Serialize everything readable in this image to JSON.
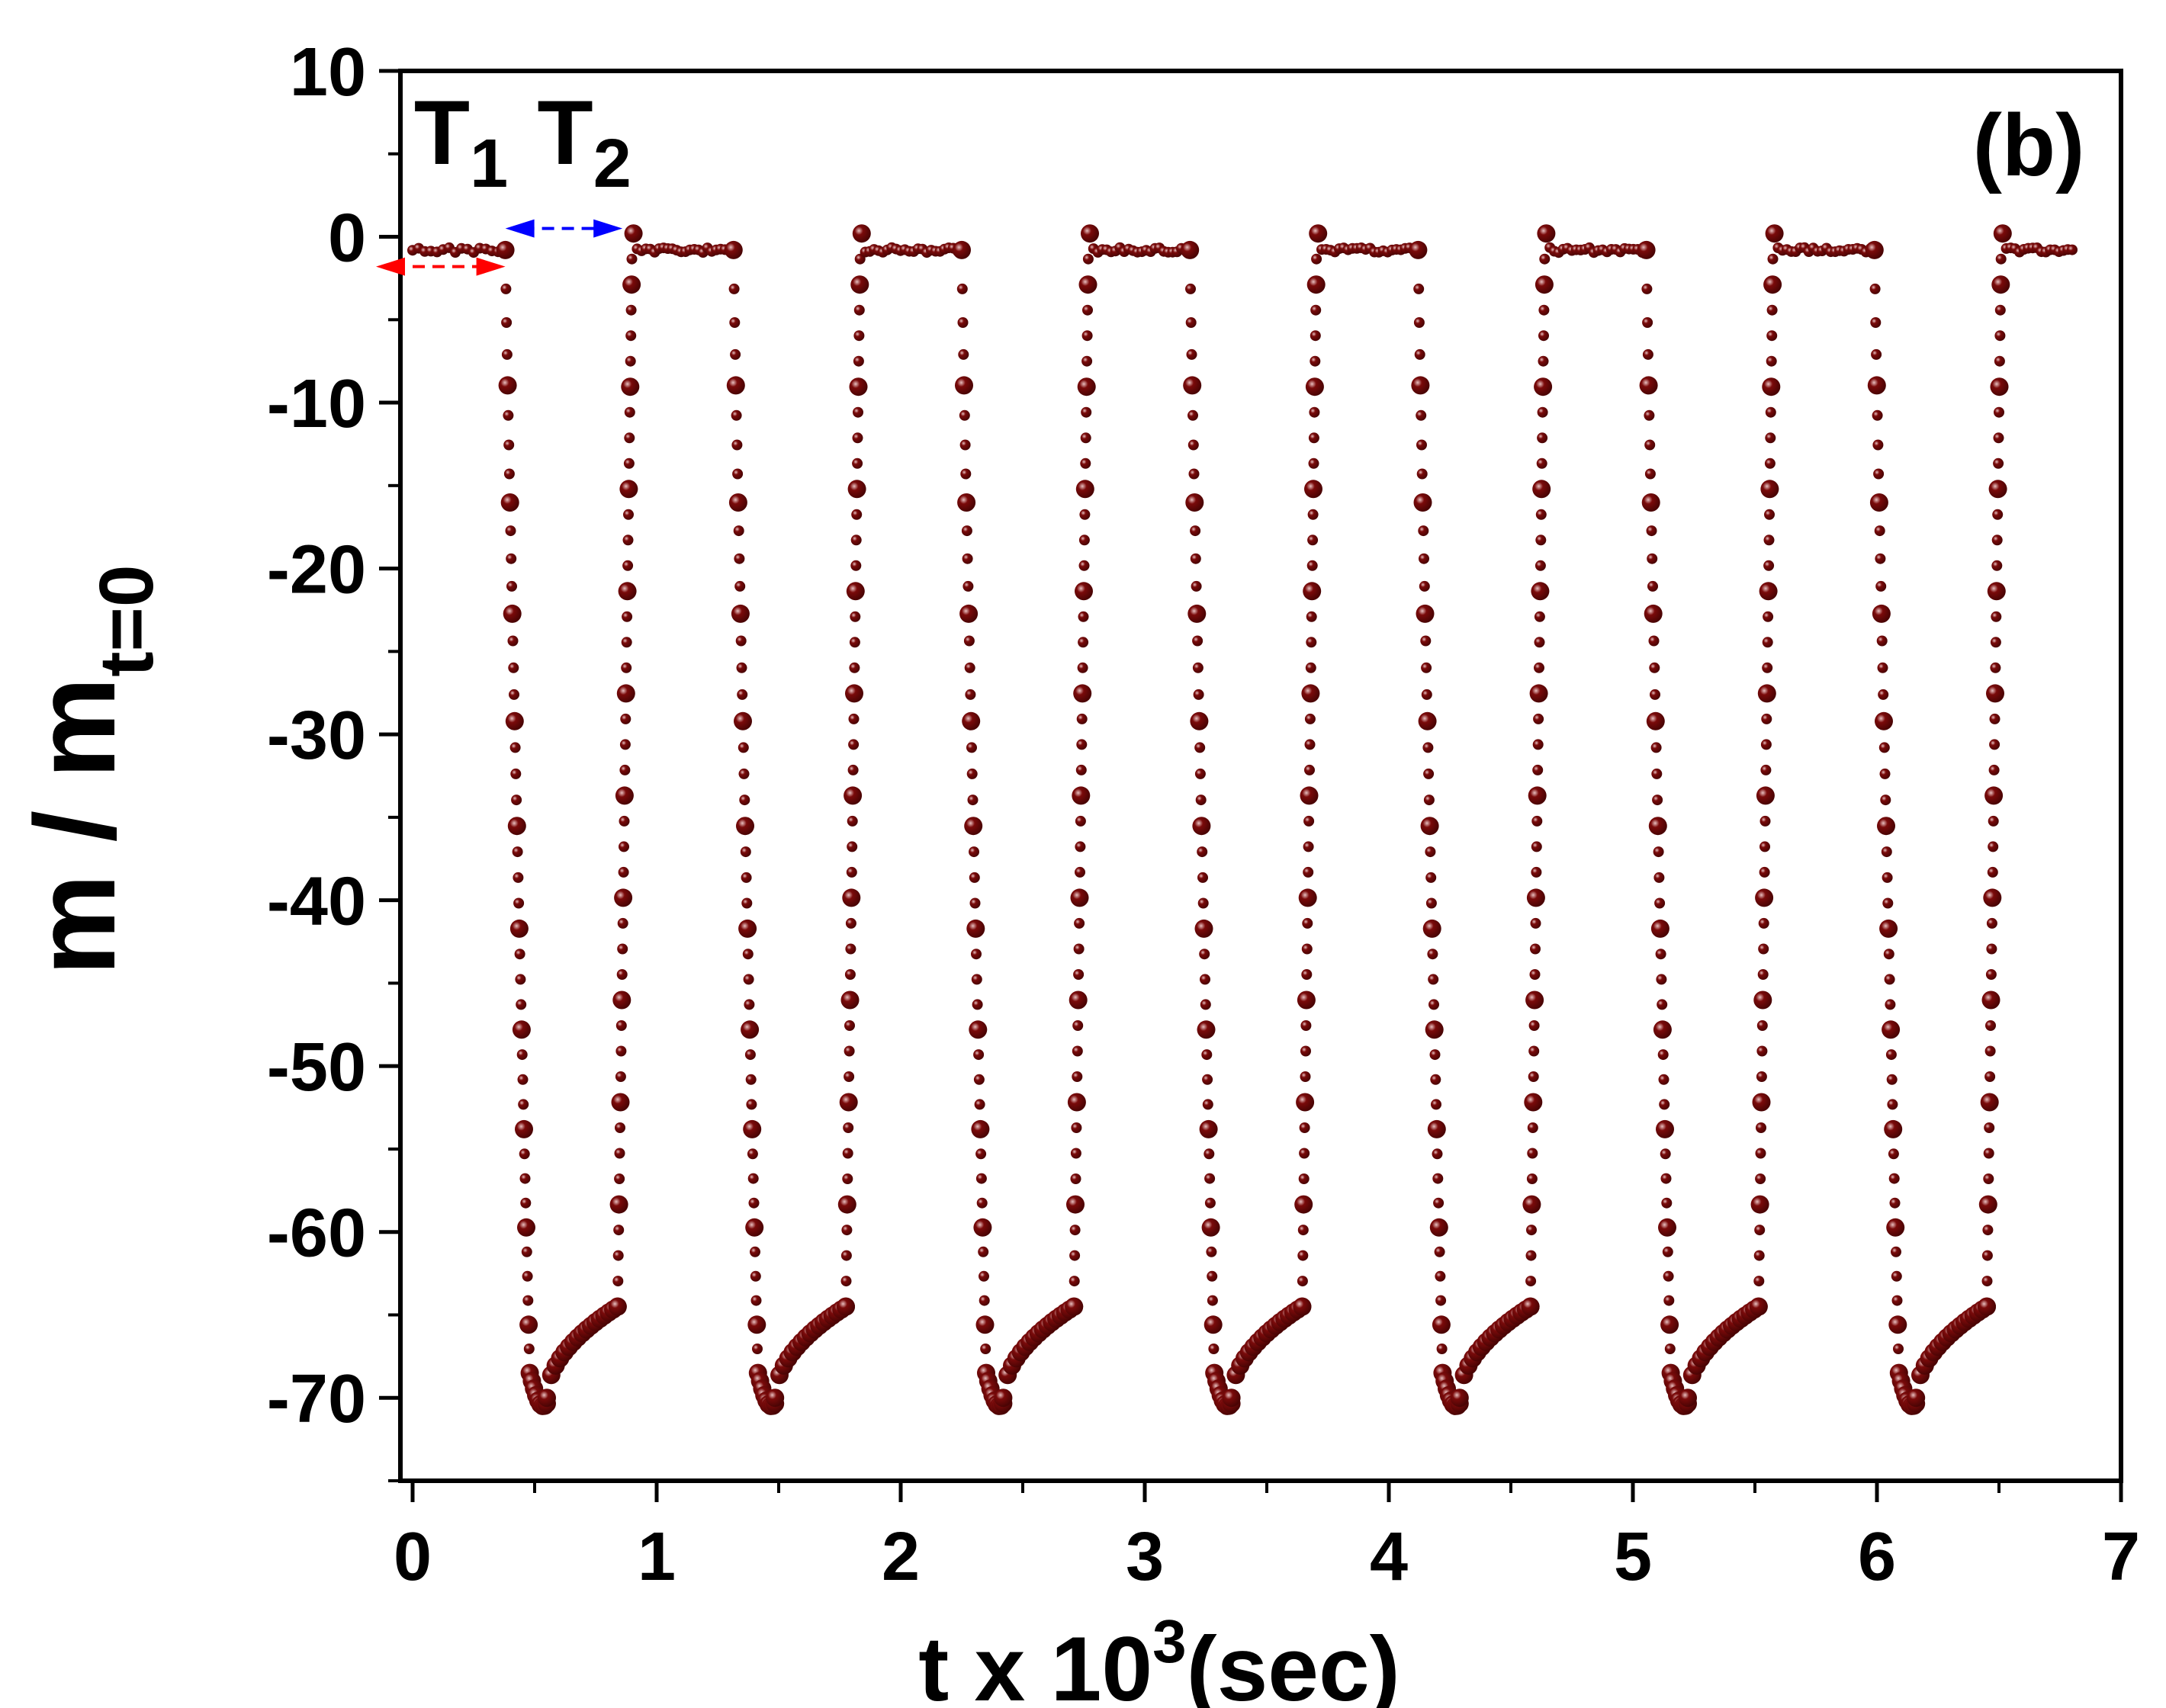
{
  "chart_data": {
    "type": "scatter",
    "panel_label": "(b)",
    "xlabel": "t x 10",
    "xlabel_sup": "3",
    "xlabel_unit": "(sec)",
    "ylabel": "m / m",
    "ylabel_sub": "t=0",
    "xlim": [
      -0.05,
      7.0
    ],
    "ylim": [
      -75,
      10
    ],
    "xticks": [
      0,
      1,
      2,
      3,
      4,
      5,
      6,
      7
    ],
    "yticks": [
      10,
      0,
      -10,
      -20,
      -30,
      -40,
      -50,
      -60,
      -70
    ],
    "annotations": [
      {
        "text": "T",
        "sub": "1",
        "color": "#ff0000",
        "x_from": -0.15,
        "x_to": 0.38,
        "y": -1.8
      },
      {
        "text": "T",
        "sub": "2",
        "color": "#0000ff",
        "x_from": 0.38,
        "x_to": 0.86,
        "y": 0.5
      }
    ],
    "marker_color": "#7a0a0a",
    "cycle": {
      "period": 0.935,
      "start_times": [
        0.38,
        1.315,
        2.25,
        3.185,
        4.12,
        5.055,
        5.99
      ],
      "t_end": 6.8,
      "high_level": -0.8,
      "min_value": -70.5,
      "end_of_low": -64.5
    }
  }
}
